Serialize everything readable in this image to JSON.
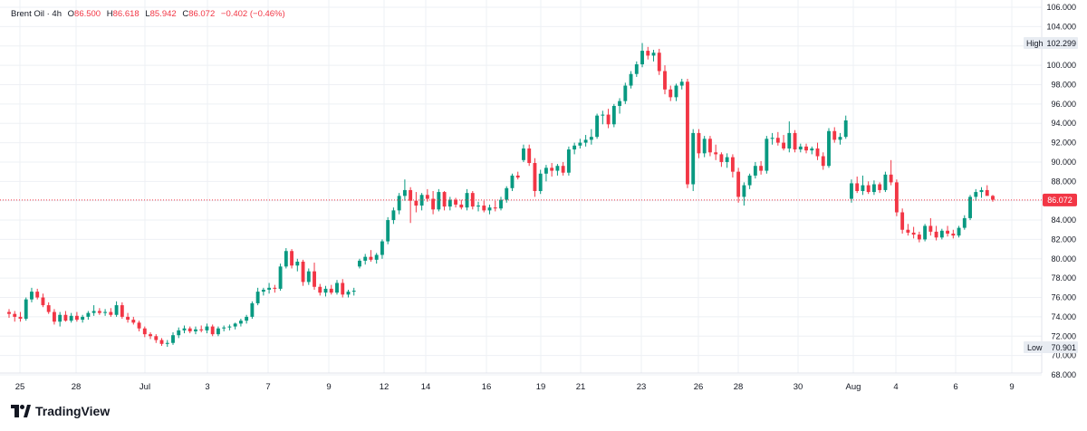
{
  "header": {
    "symbol": "Brent Oil",
    "interval": "4h",
    "o_label": "O",
    "o_value": "86.500",
    "h_label": "H",
    "h_value": "86.618",
    "l_label": "L",
    "l_value": "85.942",
    "c_label": "C",
    "c_value": "86.072",
    "change": "−0.402 (−0.46%)"
  },
  "brand": {
    "name": "TradingView",
    "icon": "tradingview-logo-icon"
  },
  "colors": {
    "up": "#089981",
    "down": "#f23645",
    "grid": "#eef0f4",
    "text": "#131722",
    "badge_bg": "#e8ecf2"
  },
  "chart_data": {
    "type": "candlestick",
    "y_range": [
      68,
      106
    ],
    "y_ticks": [
      "106.000",
      "104.000",
      "102.000",
      "100.000",
      "98.000",
      "96.000",
      "94.000",
      "92.000",
      "90.000",
      "88.000",
      "86.000",
      "84.000",
      "82.000",
      "80.000",
      "78.000",
      "76.000",
      "74.000",
      "72.000",
      "70.000",
      "68.000"
    ],
    "x_ticks": [
      "25",
      "28",
      "Jul",
      "3",
      "7",
      "9",
      "12",
      "14",
      "16",
      "19",
      "21",
      "23",
      "26",
      "28",
      "30",
      "Aug",
      "4",
      "6",
      "9"
    ],
    "last_price": "86.072",
    "high_label": "High",
    "high_value": "102.299",
    "low_label": "Low",
    "low_value": "70.901",
    "candles": [
      {
        "o": 74.5,
        "h": 74.8,
        "l": 73.9,
        "c": 74.3
      },
      {
        "o": 74.3,
        "h": 74.6,
        "l": 73.5,
        "c": 74.0
      },
      {
        "o": 74.0,
        "h": 74.5,
        "l": 73.5,
        "c": 73.8
      },
      {
        "o": 73.8,
        "h": 76.0,
        "l": 73.6,
        "c": 75.8
      },
      {
        "o": 75.8,
        "h": 77.0,
        "l": 75.5,
        "c": 76.6
      },
      {
        "o": 76.6,
        "h": 76.9,
        "l": 75.8,
        "c": 76.0
      },
      {
        "o": 76.0,
        "h": 76.4,
        "l": 75.0,
        "c": 75.2
      },
      {
        "o": 75.2,
        "h": 75.5,
        "l": 74.3,
        "c": 74.5
      },
      {
        "o": 74.5,
        "h": 74.8,
        "l": 73.2,
        "c": 73.5
      },
      {
        "o": 73.5,
        "h": 74.5,
        "l": 73.0,
        "c": 74.2
      },
      {
        "o": 74.2,
        "h": 74.6,
        "l": 73.5,
        "c": 73.6
      },
      {
        "o": 73.6,
        "h": 74.4,
        "l": 73.4,
        "c": 74.1
      },
      {
        "o": 74.1,
        "h": 74.5,
        "l": 73.5,
        "c": 73.7
      },
      {
        "o": 73.7,
        "h": 74.2,
        "l": 73.4,
        "c": 74.0
      },
      {
        "o": 74.0,
        "h": 74.6,
        "l": 73.7,
        "c": 74.4
      },
      {
        "o": 74.4,
        "h": 75.2,
        "l": 74.1,
        "c": 74.6
      },
      {
        "o": 74.6,
        "h": 74.9,
        "l": 74.2,
        "c": 74.4
      },
      {
        "o": 74.4,
        "h": 74.8,
        "l": 74.1,
        "c": 74.5
      },
      {
        "o": 74.5,
        "h": 74.9,
        "l": 74.0,
        "c": 74.2
      },
      {
        "o": 74.2,
        "h": 75.6,
        "l": 74.0,
        "c": 75.2
      },
      {
        "o": 75.2,
        "h": 75.5,
        "l": 73.8,
        "c": 74.0
      },
      {
        "o": 74.0,
        "h": 74.4,
        "l": 73.4,
        "c": 73.7
      },
      {
        "o": 73.7,
        "h": 74.0,
        "l": 73.2,
        "c": 73.4
      },
      {
        "o": 73.4,
        "h": 73.6,
        "l": 72.5,
        "c": 72.8
      },
      {
        "o": 72.8,
        "h": 73.0,
        "l": 71.9,
        "c": 72.2
      },
      {
        "o": 72.2,
        "h": 72.4,
        "l": 71.7,
        "c": 72.0
      },
      {
        "o": 72.0,
        "h": 72.2,
        "l": 71.3,
        "c": 71.6
      },
      {
        "o": 71.6,
        "h": 71.8,
        "l": 71.0,
        "c": 71.2
      },
      {
        "o": 71.2,
        "h": 71.6,
        "l": 70.9,
        "c": 71.3
      },
      {
        "o": 71.3,
        "h": 72.4,
        "l": 71.1,
        "c": 72.1
      },
      {
        "o": 72.1,
        "h": 72.9,
        "l": 71.8,
        "c": 72.6
      },
      {
        "o": 72.6,
        "h": 73.1,
        "l": 72.3,
        "c": 72.8
      },
      {
        "o": 72.8,
        "h": 73.0,
        "l": 72.3,
        "c": 72.5
      },
      {
        "o": 72.5,
        "h": 73.0,
        "l": 72.2,
        "c": 72.7
      },
      {
        "o": 72.7,
        "h": 73.1,
        "l": 72.4,
        "c": 72.6
      },
      {
        "o": 72.6,
        "h": 73.3,
        "l": 72.3,
        "c": 73.0
      },
      {
        "o": 73.0,
        "h": 73.2,
        "l": 72.0,
        "c": 72.2
      },
      {
        "o": 72.2,
        "h": 73.0,
        "l": 72.0,
        "c": 72.8
      },
      {
        "o": 72.8,
        "h": 73.1,
        "l": 72.5,
        "c": 72.9
      },
      {
        "o": 72.9,
        "h": 73.2,
        "l": 72.6,
        "c": 73.0
      },
      {
        "o": 73.0,
        "h": 73.4,
        "l": 72.7,
        "c": 73.3
      },
      {
        "o": 73.3,
        "h": 73.8,
        "l": 73.0,
        "c": 73.6
      },
      {
        "o": 73.6,
        "h": 74.2,
        "l": 73.3,
        "c": 74.0
      },
      {
        "o": 74.0,
        "h": 75.6,
        "l": 73.8,
        "c": 75.4
      },
      {
        "o": 75.4,
        "h": 77.0,
        "l": 75.2,
        "c": 76.6
      },
      {
        "o": 76.6,
        "h": 77.0,
        "l": 76.2,
        "c": 76.8
      },
      {
        "o": 76.8,
        "h": 77.5,
        "l": 76.4,
        "c": 77.0
      },
      {
        "o": 77.0,
        "h": 77.3,
        "l": 76.5,
        "c": 76.9
      },
      {
        "o": 76.9,
        "h": 79.5,
        "l": 76.7,
        "c": 79.2
      },
      {
        "o": 79.2,
        "h": 81.1,
        "l": 79.0,
        "c": 80.8
      },
      {
        "o": 80.8,
        "h": 81.0,
        "l": 79.0,
        "c": 79.3
      },
      {
        "o": 79.3,
        "h": 80.0,
        "l": 78.7,
        "c": 79.7
      },
      {
        "o": 79.7,
        "h": 79.9,
        "l": 77.2,
        "c": 77.6
      },
      {
        "o": 77.6,
        "h": 79.0,
        "l": 77.3,
        "c": 78.7
      },
      {
        "o": 78.7,
        "h": 79.6,
        "l": 76.8,
        "c": 77.1
      },
      {
        "o": 77.1,
        "h": 77.4,
        "l": 76.2,
        "c": 76.5
      },
      {
        "o": 76.5,
        "h": 77.2,
        "l": 76.1,
        "c": 76.9
      },
      {
        "o": 76.9,
        "h": 77.3,
        "l": 76.3,
        "c": 76.5
      },
      {
        "o": 76.5,
        "h": 77.8,
        "l": 76.3,
        "c": 77.5
      },
      {
        "o": 77.5,
        "h": 77.9,
        "l": 76.0,
        "c": 76.3
      },
      {
        "o": 76.3,
        "h": 76.8,
        "l": 76.0,
        "c": 76.6
      },
      {
        "o": 76.6,
        "h": 77.0,
        "l": 76.2,
        "c": 76.7
      },
      {
        "o": 79.2,
        "h": 80.0,
        "l": 79.0,
        "c": 79.8
      },
      {
        "o": 79.8,
        "h": 80.5,
        "l": 79.4,
        "c": 80.2
      },
      {
        "o": 80.2,
        "h": 80.9,
        "l": 79.7,
        "c": 79.9
      },
      {
        "o": 79.9,
        "h": 80.6,
        "l": 79.5,
        "c": 80.4
      },
      {
        "o": 80.4,
        "h": 82.0,
        "l": 80.0,
        "c": 81.8
      },
      {
        "o": 81.8,
        "h": 84.3,
        "l": 81.5,
        "c": 84.0
      },
      {
        "o": 84.0,
        "h": 85.3,
        "l": 83.6,
        "c": 85.0
      },
      {
        "o": 85.0,
        "h": 86.8,
        "l": 84.6,
        "c": 86.5
      },
      {
        "o": 86.5,
        "h": 88.2,
        "l": 86.0,
        "c": 87.1
      },
      {
        "o": 87.1,
        "h": 87.4,
        "l": 83.7,
        "c": 86.0
      },
      {
        "o": 86.0,
        "h": 86.9,
        "l": 84.8,
        "c": 85.5
      },
      {
        "o": 85.5,
        "h": 86.8,
        "l": 85.0,
        "c": 86.6
      },
      {
        "o": 86.6,
        "h": 87.2,
        "l": 85.9,
        "c": 86.2
      },
      {
        "o": 86.2,
        "h": 87.0,
        "l": 84.6,
        "c": 85.1
      },
      {
        "o": 85.1,
        "h": 87.2,
        "l": 84.9,
        "c": 86.9
      },
      {
        "o": 86.9,
        "h": 87.0,
        "l": 85.0,
        "c": 85.4
      },
      {
        "o": 85.4,
        "h": 86.4,
        "l": 85.0,
        "c": 86.1
      },
      {
        "o": 86.1,
        "h": 86.3,
        "l": 85.3,
        "c": 85.6
      },
      {
        "o": 85.6,
        "h": 86.1,
        "l": 85.1,
        "c": 85.3
      },
      {
        "o": 85.3,
        "h": 87.2,
        "l": 85.0,
        "c": 86.8
      },
      {
        "o": 86.8,
        "h": 87.0,
        "l": 85.1,
        "c": 85.4
      },
      {
        "o": 85.4,
        "h": 85.9,
        "l": 84.9,
        "c": 85.5
      },
      {
        "o": 85.5,
        "h": 86.0,
        "l": 84.8,
        "c": 85.0
      },
      {
        "o": 85.0,
        "h": 85.6,
        "l": 84.6,
        "c": 85.3
      },
      {
        "o": 85.3,
        "h": 86.0,
        "l": 84.9,
        "c": 85.2
      },
      {
        "o": 85.2,
        "h": 86.4,
        "l": 85.0,
        "c": 86.1
      },
      {
        "o": 86.1,
        "h": 87.5,
        "l": 85.8,
        "c": 87.3
      },
      {
        "o": 87.3,
        "h": 88.8,
        "l": 87.0,
        "c": 88.6
      },
      {
        "o": 88.6,
        "h": 89.0,
        "l": 88.2,
        "c": 88.4
      },
      {
        "o": 90.2,
        "h": 91.8,
        "l": 90.0,
        "c": 91.4
      },
      {
        "o": 91.4,
        "h": 91.8,
        "l": 89.6,
        "c": 89.9
      },
      {
        "o": 89.9,
        "h": 90.4,
        "l": 86.4,
        "c": 87.0
      },
      {
        "o": 87.0,
        "h": 89.2,
        "l": 86.7,
        "c": 88.8
      },
      {
        "o": 88.8,
        "h": 89.7,
        "l": 88.0,
        "c": 89.4
      },
      {
        "o": 89.4,
        "h": 89.9,
        "l": 88.5,
        "c": 89.1
      },
      {
        "o": 89.1,
        "h": 89.8,
        "l": 88.6,
        "c": 89.6
      },
      {
        "o": 89.6,
        "h": 90.0,
        "l": 88.6,
        "c": 88.9
      },
      {
        "o": 88.9,
        "h": 91.6,
        "l": 88.6,
        "c": 91.3
      },
      {
        "o": 91.3,
        "h": 92.0,
        "l": 90.8,
        "c": 91.7
      },
      {
        "o": 91.7,
        "h": 92.4,
        "l": 91.4,
        "c": 92.0
      },
      {
        "o": 92.0,
        "h": 92.8,
        "l": 91.6,
        "c": 92.3
      },
      {
        "o": 92.3,
        "h": 93.4,
        "l": 91.8,
        "c": 92.6
      },
      {
        "o": 92.6,
        "h": 95.0,
        "l": 92.4,
        "c": 94.8
      },
      {
        "o": 94.8,
        "h": 95.3,
        "l": 93.9,
        "c": 94.9
      },
      {
        "o": 94.9,
        "h": 95.5,
        "l": 93.5,
        "c": 93.9
      },
      {
        "o": 93.9,
        "h": 96.0,
        "l": 93.6,
        "c": 95.8
      },
      {
        "o": 95.8,
        "h": 96.6,
        "l": 95.0,
        "c": 96.3
      },
      {
        "o": 96.3,
        "h": 98.2,
        "l": 96.0,
        "c": 97.9
      },
      {
        "o": 97.9,
        "h": 99.4,
        "l": 97.6,
        "c": 99.1
      },
      {
        "o": 99.1,
        "h": 100.4,
        "l": 98.8,
        "c": 100.1
      },
      {
        "o": 100.1,
        "h": 102.3,
        "l": 99.8,
        "c": 101.5
      },
      {
        "o": 101.5,
        "h": 101.9,
        "l": 100.6,
        "c": 101.0
      },
      {
        "o": 101.0,
        "h": 101.6,
        "l": 100.4,
        "c": 101.3
      },
      {
        "o": 101.3,
        "h": 101.7,
        "l": 99.0,
        "c": 99.4
      },
      {
        "o": 99.4,
        "h": 100.0,
        "l": 97.0,
        "c": 97.5
      },
      {
        "o": 97.5,
        "h": 97.9,
        "l": 96.3,
        "c": 96.7
      },
      {
        "o": 96.7,
        "h": 98.1,
        "l": 96.3,
        "c": 97.9
      },
      {
        "o": 97.9,
        "h": 98.6,
        "l": 97.5,
        "c": 98.3
      },
      {
        "o": 98.3,
        "h": 98.6,
        "l": 87.3,
        "c": 87.7
      },
      {
        "o": 87.7,
        "h": 93.4,
        "l": 87.0,
        "c": 93.0
      },
      {
        "o": 93.0,
        "h": 93.4,
        "l": 90.4,
        "c": 90.9
      },
      {
        "o": 90.9,
        "h": 92.7,
        "l": 90.5,
        "c": 92.4
      },
      {
        "o": 92.4,
        "h": 92.7,
        "l": 90.6,
        "c": 91.0
      },
      {
        "o": 91.0,
        "h": 91.8,
        "l": 90.2,
        "c": 90.8
      },
      {
        "o": 90.8,
        "h": 91.0,
        "l": 89.5,
        "c": 90.0
      },
      {
        "o": 90.0,
        "h": 90.9,
        "l": 89.4,
        "c": 90.5
      },
      {
        "o": 90.5,
        "h": 90.8,
        "l": 88.4,
        "c": 89.0
      },
      {
        "o": 89.0,
        "h": 89.4,
        "l": 85.8,
        "c": 86.4
      },
      {
        "o": 86.4,
        "h": 87.9,
        "l": 85.5,
        "c": 87.6
      },
      {
        "o": 87.6,
        "h": 88.8,
        "l": 87.2,
        "c": 88.6
      },
      {
        "o": 88.6,
        "h": 90.0,
        "l": 88.3,
        "c": 89.6
      },
      {
        "o": 89.6,
        "h": 90.1,
        "l": 88.7,
        "c": 89.1
      },
      {
        "o": 89.1,
        "h": 92.7,
        "l": 88.8,
        "c": 92.4
      },
      {
        "o": 92.4,
        "h": 93.0,
        "l": 91.8,
        "c": 92.5
      },
      {
        "o": 92.5,
        "h": 93.1,
        "l": 91.7,
        "c": 92.0
      },
      {
        "o": 92.0,
        "h": 92.8,
        "l": 91.2,
        "c": 91.4
      },
      {
        "o": 91.4,
        "h": 94.2,
        "l": 91.0,
        "c": 93.0
      },
      {
        "o": 93.0,
        "h": 93.3,
        "l": 91.0,
        "c": 91.3
      },
      {
        "o": 91.3,
        "h": 91.9,
        "l": 91.0,
        "c": 91.6
      },
      {
        "o": 91.6,
        "h": 91.9,
        "l": 90.9,
        "c": 91.2
      },
      {
        "o": 91.2,
        "h": 91.6,
        "l": 90.8,
        "c": 91.4
      },
      {
        "o": 91.4,
        "h": 92.0,
        "l": 90.2,
        "c": 90.6
      },
      {
        "o": 90.6,
        "h": 91.0,
        "l": 89.2,
        "c": 89.6
      },
      {
        "o": 89.6,
        "h": 93.5,
        "l": 89.4,
        "c": 93.2
      },
      {
        "o": 93.2,
        "h": 93.6,
        "l": 92.0,
        "c": 92.3
      },
      {
        "o": 92.3,
        "h": 93.0,
        "l": 91.8,
        "c": 92.6
      },
      {
        "o": 92.6,
        "h": 94.8,
        "l": 92.4,
        "c": 94.3
      },
      {
        "o": 86.2,
        "h": 88.2,
        "l": 85.8,
        "c": 87.8
      },
      {
        "o": 87.8,
        "h": 88.5,
        "l": 86.8,
        "c": 87.0
      },
      {
        "o": 87.0,
        "h": 88.6,
        "l": 86.6,
        "c": 87.6
      },
      {
        "o": 87.6,
        "h": 88.0,
        "l": 86.7,
        "c": 86.9
      },
      {
        "o": 86.9,
        "h": 88.1,
        "l": 86.6,
        "c": 87.7
      },
      {
        "o": 87.7,
        "h": 87.9,
        "l": 86.8,
        "c": 87.1
      },
      {
        "o": 87.1,
        "h": 89.0,
        "l": 86.9,
        "c": 88.7
      },
      {
        "o": 88.7,
        "h": 90.2,
        "l": 87.6,
        "c": 87.9
      },
      {
        "o": 87.9,
        "h": 88.2,
        "l": 84.4,
        "c": 84.8
      },
      {
        "o": 84.8,
        "h": 85.2,
        "l": 82.6,
        "c": 83.0
      },
      {
        "o": 83.0,
        "h": 83.6,
        "l": 82.4,
        "c": 82.7
      },
      {
        "o": 82.7,
        "h": 83.3,
        "l": 82.1,
        "c": 82.5
      },
      {
        "o": 82.5,
        "h": 82.8,
        "l": 81.7,
        "c": 82.0
      },
      {
        "o": 82.0,
        "h": 83.6,
        "l": 81.8,
        "c": 83.4
      },
      {
        "o": 83.4,
        "h": 84.2,
        "l": 82.4,
        "c": 82.8
      },
      {
        "o": 82.8,
        "h": 83.4,
        "l": 81.9,
        "c": 82.2
      },
      {
        "o": 82.2,
        "h": 83.1,
        "l": 82.0,
        "c": 82.9
      },
      {
        "o": 82.9,
        "h": 83.4,
        "l": 82.3,
        "c": 82.6
      },
      {
        "o": 82.6,
        "h": 83.0,
        "l": 82.1,
        "c": 82.4
      },
      {
        "o": 82.4,
        "h": 83.4,
        "l": 82.2,
        "c": 83.2
      },
      {
        "o": 83.2,
        "h": 84.5,
        "l": 83.0,
        "c": 84.2
      },
      {
        "o": 84.2,
        "h": 86.6,
        "l": 84.0,
        "c": 86.4
      },
      {
        "o": 86.4,
        "h": 87.2,
        "l": 86.0,
        "c": 86.9
      },
      {
        "o": 86.9,
        "h": 87.4,
        "l": 86.3,
        "c": 87.1
      },
      {
        "o": 87.1,
        "h": 87.6,
        "l": 86.6,
        "c": 86.5
      },
      {
        "o": 86.5,
        "h": 86.6,
        "l": 85.9,
        "c": 86.1
      }
    ]
  }
}
